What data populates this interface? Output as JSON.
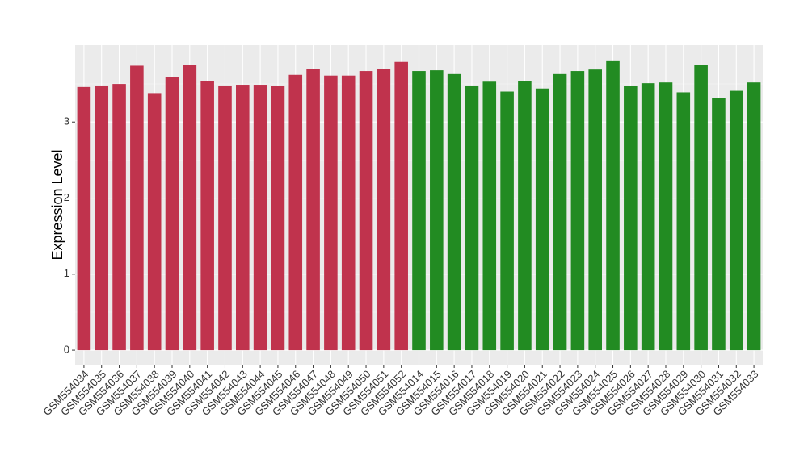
{
  "chart_data": {
    "type": "bar",
    "y_label": "Expression Level",
    "categories": [
      "GSM554034",
      "GSM554035",
      "GSM554036",
      "GSM554037",
      "GSM554038",
      "GSM554039",
      "GSM554040",
      "GSM554041",
      "GSM554042",
      "GSM554043",
      "GSM554044",
      "GSM554045",
      "GSM554046",
      "GSM554047",
      "GSM554048",
      "GSM554049",
      "GSM554050",
      "GSM554051",
      "GSM554052",
      "GSM554014",
      "GSM554015",
      "GSM554016",
      "GSM554017",
      "GSM554018",
      "GSM554019",
      "GSM554020",
      "GSM554021",
      "GSM554022",
      "GSM554023",
      "GSM554024",
      "GSM554025",
      "GSM554026",
      "GSM554027",
      "GSM554028",
      "GSM554029",
      "GSM554030",
      "GSM554031",
      "GSM554032",
      "GSM554033"
    ],
    "values": [
      3.46,
      3.48,
      3.5,
      3.74,
      3.38,
      3.59,
      3.75,
      3.54,
      3.48,
      3.49,
      3.49,
      3.47,
      3.62,
      3.7,
      3.61,
      3.61,
      3.67,
      3.7,
      3.79,
      3.67,
      3.68,
      3.63,
      3.48,
      3.53,
      3.4,
      3.54,
      3.44,
      3.63,
      3.67,
      3.69,
      3.81,
      3.47,
      3.51,
      3.52,
      3.39,
      3.75,
      3.31,
      3.41,
      3.52
    ],
    "colors": [
      "#c0334d",
      "#c0334d",
      "#c0334d",
      "#c0334d",
      "#c0334d",
      "#c0334d",
      "#c0334d",
      "#c0334d",
      "#c0334d",
      "#c0334d",
      "#c0334d",
      "#c0334d",
      "#c0334d",
      "#c0334d",
      "#c0334d",
      "#c0334d",
      "#c0334d",
      "#c0334d",
      "#c0334d",
      "#228b22",
      "#228b22",
      "#228b22",
      "#228b22",
      "#228b22",
      "#228b22",
      "#228b22",
      "#228b22",
      "#228b22",
      "#228b22",
      "#228b22",
      "#228b22",
      "#228b22",
      "#228b22",
      "#228b22",
      "#228b22",
      "#228b22",
      "#228b22",
      "#228b22",
      "#228b22"
    ],
    "ylim": [
      -0.19,
      4.01
    ],
    "yticks": [
      0,
      1,
      2,
      3
    ],
    "grid": true
  }
}
